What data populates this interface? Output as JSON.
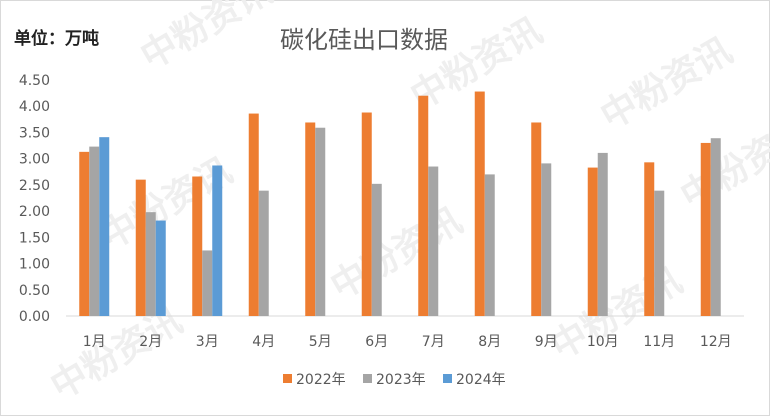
{
  "unit_label": "单位：万吨",
  "chart_data": {
    "type": "bar",
    "title": "碳化硅出口数据",
    "categories": [
      "1月",
      "2月",
      "3月",
      "4月",
      "5月",
      "6月",
      "7月",
      "8月",
      "9月",
      "10月",
      "11月",
      "12月"
    ],
    "series": [
      {
        "name": "2022年",
        "color": "#ED7D31",
        "values": [
          3.13,
          2.6,
          2.66,
          3.86,
          3.69,
          3.88,
          4.2,
          4.28,
          3.69,
          2.83,
          2.93,
          3.3
        ]
      },
      {
        "name": "2023年",
        "color": "#A5A5A5",
        "values": [
          3.23,
          1.98,
          1.25,
          2.39,
          3.59,
          2.52,
          2.85,
          2.7,
          2.91,
          3.11,
          2.39,
          3.39
        ]
      },
      {
        "name": "2024年",
        "color": "#5B9BD5",
        "values": [
          3.41,
          1.82,
          2.87,
          null,
          null,
          null,
          null,
          null,
          null,
          null,
          null,
          null
        ]
      }
    ],
    "ylim": [
      0,
      4.5
    ],
    "y_ticks": [
      "0.00",
      "0.50",
      "1.00",
      "1.50",
      "2.00",
      "2.50",
      "3.00",
      "3.50",
      "4.00",
      "4.50"
    ],
    "legend_position": "bottom",
    "grid": false
  },
  "watermark": "中粉资讯"
}
